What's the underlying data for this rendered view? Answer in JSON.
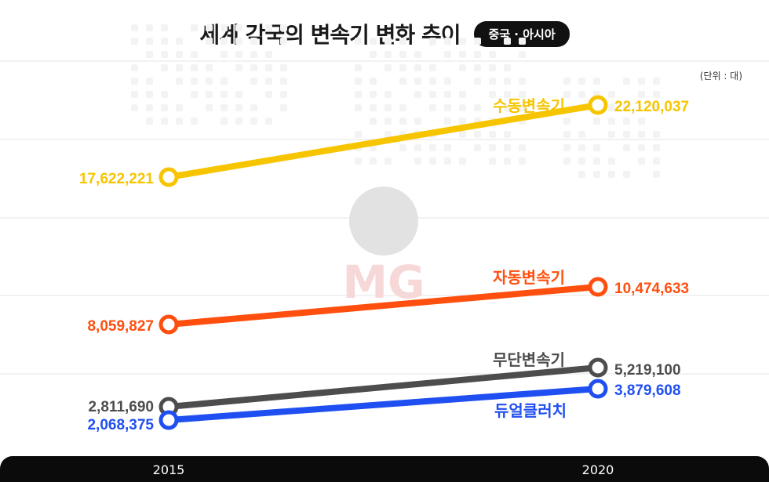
{
  "header": {
    "title": "세계 각국의 변속기 변화 추이",
    "badge": "중국 · 아시아",
    "unit": "(단위 : 대)"
  },
  "watermark": {
    "text": "MG"
  },
  "colors": {
    "manual": "#f7c500",
    "automatic": "#ff4f0f",
    "cvt": "#4d4d4d",
    "dct": "#1f4ff0",
    "grid": "#e4e4e4",
    "axis_bar": "#0b0b0b"
  },
  "chart_data": {
    "type": "line",
    "x": [
      "2015",
      "2020"
    ],
    "title": "세계 각국의 변속기 변화 추이",
    "xlabel": "",
    "ylabel": "",
    "grid": true,
    "series": [
      {
        "name": "수동변속기",
        "values": [
          17622221,
          22120037
        ],
        "labels": [
          "17,622,221",
          "22,120,037"
        ],
        "color": "#f7c500"
      },
      {
        "name": "자동변속기",
        "values": [
          8059827,
          10474633
        ],
        "labels": [
          "8,059,827",
          "10,474,633"
        ],
        "color": "#ff4f0f"
      },
      {
        "name": "무단변속기",
        "values": [
          2811690,
          5219100
        ],
        "labels": [
          "2,811,690",
          "5,219,100"
        ],
        "color": "#4d4d4d"
      },
      {
        "name": "듀얼클러치",
        "values": [
          2068375,
          3879608
        ],
        "labels": [
          "2,068,375",
          "3,879,608"
        ],
        "color": "#1f4ff0"
      }
    ]
  }
}
